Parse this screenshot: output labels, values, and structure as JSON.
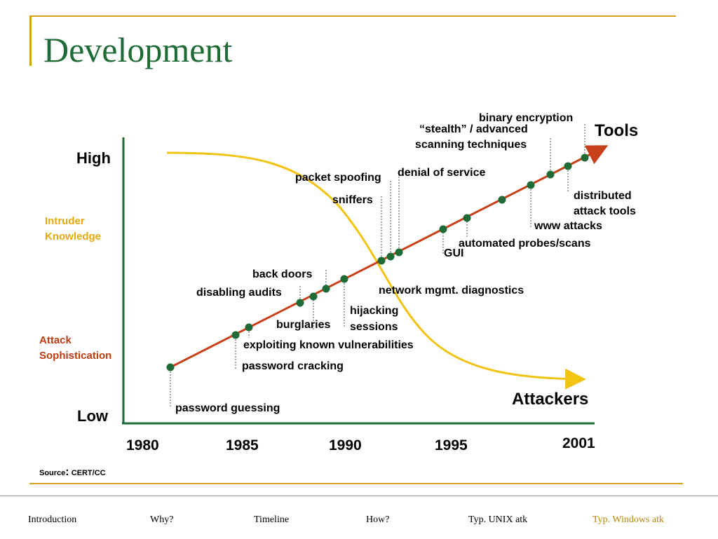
{
  "title": "Development",
  "source": {
    "label": "Source",
    "text": "CERT/CC"
  },
  "axis": {
    "high": "High",
    "low": "Low"
  },
  "side_labels": {
    "knowledge": [
      "Intruder",
      "Knowledge"
    ],
    "sophistication": [
      "Attack",
      "Sophistication"
    ]
  },
  "series_labels": {
    "tools": "Tools",
    "attackers": "Attackers"
  },
  "colors": {
    "tools_line": "#c8401a",
    "attackers_curve": "#f2c312",
    "points": "#1e6b35",
    "axis": "#1e6b35",
    "accent": "#d4a017"
  },
  "chart_data": {
    "type": "line",
    "x_ticks": [
      "1980",
      "1985",
      "1990",
      "1995",
      "2001"
    ],
    "y_range": [
      "Low",
      "High"
    ],
    "series": [
      {
        "name": "Tools",
        "trend": "increasing"
      },
      {
        "name": "Attackers",
        "trend": "decreasing"
      }
    ],
    "events": [
      {
        "label": "password guessing",
        "year": 1981
      },
      {
        "label": "password cracking",
        "year": 1984
      },
      {
        "label": "exploiting known vulnerabilities",
        "year": 1985
      },
      {
        "label": "burglaries",
        "year": 1987.5
      },
      {
        "label": "disabling audits",
        "year": 1988
      },
      {
        "label": "back doors",
        "year": 1988.5
      },
      {
        "label": "hijacking sessions",
        "year": 1989.5
      },
      {
        "label": "sniffers",
        "year": 1991.5
      },
      {
        "label": "packet spoofing",
        "year": 1992
      },
      {
        "label": "denial of service",
        "year": 1992.5
      },
      {
        "label": "GUI",
        "year": 1994.5
      },
      {
        "label": "automated probes/scans",
        "year": 1995.5
      },
      {
        "label": "network mgmt. diagnostics",
        "year": 1997
      },
      {
        "label": "www attacks",
        "year": 1998.5
      },
      {
        "label": "“stealth” / advanced scanning techniques",
        "year": 1999.5
      },
      {
        "label": "distributed attack tools",
        "year": 2000.2
      },
      {
        "label": "binary encryption",
        "year": 2001
      }
    ]
  },
  "nav": [
    {
      "label": "Introduction"
    },
    {
      "label": "Why?"
    },
    {
      "label": "Timeline"
    },
    {
      "label": "How?"
    },
    {
      "label": "Typ. UNIX atk"
    },
    {
      "label": "Typ. Windows atk",
      "active": true
    }
  ]
}
